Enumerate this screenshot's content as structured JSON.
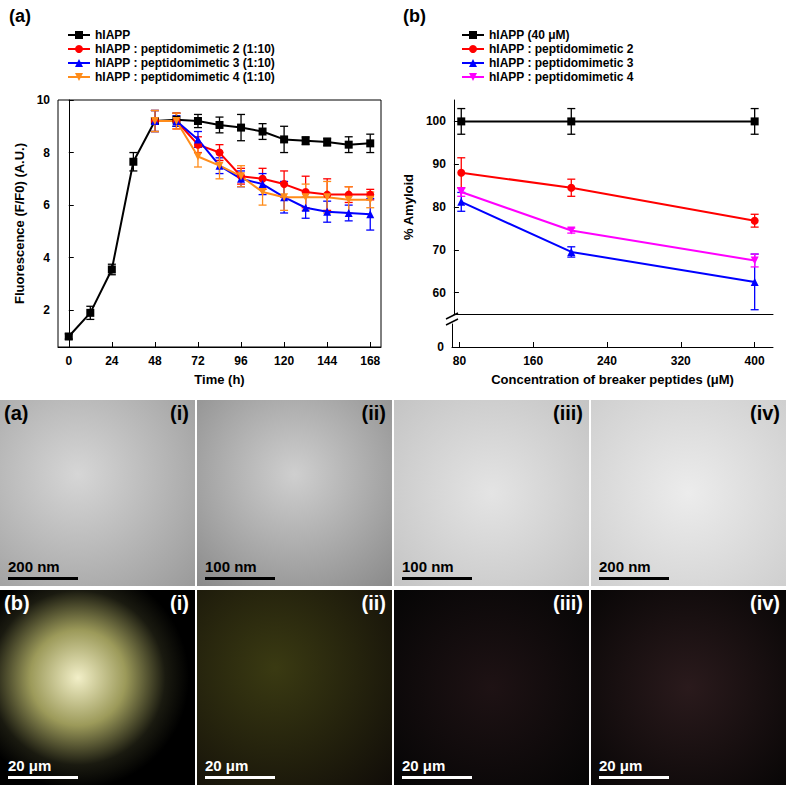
{
  "chart_data": [
    {
      "type": "line",
      "title": "(a)",
      "x_label": "Time (h)",
      "y_label": "Fluorescence (F/F0) (A.U.)",
      "x": [
        0,
        12,
        24,
        36,
        48,
        60,
        72,
        84,
        96,
        108,
        120,
        132,
        144,
        156,
        168
      ],
      "xlim": [
        -6,
        174
      ],
      "xticks": [
        0,
        24,
        48,
        72,
        96,
        120,
        144,
        168
      ],
      "ylim": [
        0.6,
        10
      ],
      "yticks": [
        2,
        4,
        6,
        8,
        10
      ],
      "legend": "top-left",
      "series": [
        {
          "name": "hIAPP",
          "color": "#000000",
          "marker": "square",
          "values": [
            1,
            1.9,
            3.55,
            7.65,
            9.2,
            9.25,
            9.2,
            9.05,
            8.95,
            8.8,
            8.5,
            8.45,
            8.4,
            8.3,
            8.35
          ],
          "errors": [
            0.1,
            0.25,
            0.2,
            0.35,
            0.4,
            0.25,
            0.25,
            0.3,
            0.5,
            0.3,
            0.5,
            0.15,
            0.15,
            0.3,
            0.35
          ]
        },
        {
          "name": "hIAPP : peptidomimetic 2 (1:10)",
          "color": "#ff0000",
          "marker": "circle",
          "values": [
            null,
            null,
            null,
            null,
            9.2,
            9.2,
            8.3,
            8.0,
            7.1,
            7.0,
            6.8,
            6.5,
            6.4,
            6.4,
            6.4
          ],
          "errors": [
            null,
            null,
            null,
            null,
            0.4,
            0.3,
            0.3,
            0.3,
            0.3,
            0.4,
            0.5,
            0.6,
            0.6,
            0.3,
            0.2
          ]
        },
        {
          "name": "hIAPP : peptidomimetic 3 (1:10)",
          "color": "#0000ff",
          "marker": "triangle",
          "values": [
            null,
            null,
            null,
            null,
            9.2,
            9.2,
            8.5,
            7.5,
            7.0,
            6.8,
            6.3,
            5.9,
            5.75,
            5.7,
            5.65
          ],
          "errors": [
            null,
            null,
            null,
            null,
            0.4,
            0.2,
            0.3,
            0.3,
            0.3,
            0.4,
            0.6,
            0.4,
            0.4,
            0.3,
            0.6
          ]
        },
        {
          "name": "hIAPP : peptidomimetic 4 (1:10)",
          "color": "#ff8c1a",
          "marker": "triangle-down",
          "values": [
            null,
            null,
            null,
            null,
            9.2,
            9.2,
            7.85,
            7.5,
            7.1,
            6.5,
            6.3,
            6.3,
            6.3,
            6.2,
            6.2
          ],
          "errors": [
            null,
            null,
            null,
            null,
            0.4,
            0.3,
            0.4,
            0.5,
            0.4,
            0.5,
            0.5,
            0.5,
            0.6,
            0.5,
            0.3
          ]
        }
      ]
    },
    {
      "type": "line",
      "title": "(b)",
      "x_label": "Concentration of breaker peptides (μM)",
      "y_label": "% Amyloid",
      "x": [
        80,
        200,
        400
      ],
      "xlim": [
        72,
        420
      ],
      "xticks": [
        80,
        160,
        240,
        320,
        400
      ],
      "ylim": [
        55,
        105
      ],
      "yticks": [
        60,
        70,
        80,
        90,
        100
      ],
      "ylim_lower": [
        0,
        2
      ],
      "yticks_lower": [
        0
      ],
      "legend": "top-left",
      "series": [
        {
          "name": "hIAPP (40 μM)",
          "color": "#000000",
          "marker": "square",
          "values": [
            100,
            100,
            100
          ],
          "errors": [
            3,
            3,
            3
          ]
        },
        {
          "name": "hIAPP : peptidomimetic 2",
          "color": "#ff0000",
          "marker": "circle",
          "values": [
            88,
            84.5,
            76.8
          ],
          "errors": [
            3.5,
            2,
            1.5
          ]
        },
        {
          "name": "hIAPP : peptidomimetic 3",
          "color": "#0000ff",
          "marker": "triangle",
          "values": [
            81.2,
            69.5,
            62.5
          ],
          "errors": [
            2.2,
            1.2,
            6.5
          ]
        },
        {
          "name": "hIAPP : peptidomimetic 4",
          "color": "#ff00ff",
          "marker": "triangle-down",
          "values": [
            83.5,
            74.5,
            67.5
          ],
          "errors": [
            1,
            0.6,
            1.5
          ]
        }
      ]
    }
  ],
  "images": [
    {
      "label": "(a)",
      "items": [
        {
          "label": "(i)",
          "scale_bar": "200 nm"
        },
        {
          "label": "(ii)",
          "scale_bar": "100 nm"
        },
        {
          "label": "(iii)",
          "scale_bar": "100 nm"
        },
        {
          "label": "(iv)",
          "scale_bar": "200 nm"
        }
      ]
    },
    {
      "label": "(b)",
      "items": [
        {
          "label": "(i)",
          "scale_bar": "20 μm"
        },
        {
          "label": "(ii)",
          "scale_bar": "20 μm"
        },
        {
          "label": "(iii)",
          "scale_bar": "20 μm"
        },
        {
          "label": "(iv)",
          "scale_bar": "20 μm"
        }
      ]
    }
  ]
}
